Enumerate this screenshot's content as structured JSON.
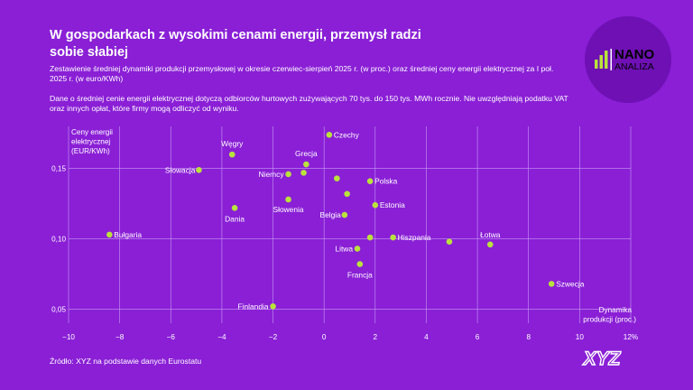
{
  "header": {
    "title": "W gospodarkach z wysokimi cenami energii, przemysł radzi sobie słabiej",
    "subtitle": "Zestawienie średniej dynamiki produkcji przemysłowej w okresie czerwiec-sierpień 2025 r. (w proc.) oraz średniej ceny energii elektrycznej za I poł. 2025 r. (w euro/KWh)",
    "note": "Dane o średniej cenie energii elektrycznej dotyczą odbiorców hurtowych zużywających 70 tys. do 150 tys. MWh rocznie. Nie uwzględniają podatku VAT oraz innych opłat, które firmy mogą odliczyć od wyniku."
  },
  "logo": {
    "line1": "NANO",
    "line2": "ANALIZA"
  },
  "footer": {
    "source": "Źródło: XYZ na podstawie danych Eurostatu",
    "brand": "XYZ"
  },
  "colors": {
    "background": "#8a1fd6",
    "point": "#b9e33c",
    "grid": "#c79cf2"
  },
  "chart_data": {
    "type": "scatter",
    "xlabel": "Dynamika produkcji (proc.)",
    "ylabel": "Ceny energii elektrycznej (EUR/KWh)",
    "xlim": [
      -10,
      12
    ],
    "ylim": [
      0.04,
      0.18
    ],
    "x_ticks": [
      -10,
      -8,
      -6,
      -4,
      -2,
      0,
      2,
      4,
      6,
      8,
      10,
      12
    ],
    "x_tick_labels": [
      "−10",
      "−8",
      "−6",
      "−4",
      "−2",
      "0",
      "2",
      "4",
      "6",
      "8",
      "10",
      "12%"
    ],
    "y_ticks": [
      0.05,
      0.1,
      0.15
    ],
    "y_tick_labels": [
      "0,05",
      "0,10",
      "0,15"
    ],
    "grid": true,
    "points": [
      {
        "label": "Czechy",
        "x": 0.2,
        "y": 0.174
      },
      {
        "label": "Węgry",
        "x": -3.6,
        "y": 0.16
      },
      {
        "label": "Grecja",
        "x": -0.7,
        "y": 0.153
      },
      {
        "label": "Słowacja",
        "x": -4.9,
        "y": 0.149
      },
      {
        "label": "Niemcy",
        "x": -1.4,
        "y": 0.146
      },
      {
        "label": "",
        "x": -0.8,
        "y": 0.147
      },
      {
        "label": "",
        "x": 0.5,
        "y": 0.143
      },
      {
        "label": "Polska",
        "x": 1.8,
        "y": 0.141
      },
      {
        "label": "",
        "x": 0.9,
        "y": 0.132
      },
      {
        "label": "Słowenia",
        "x": -1.4,
        "y": 0.128
      },
      {
        "label": "Estonia",
        "x": 2.0,
        "y": 0.124
      },
      {
        "label": "Dania",
        "x": -3.5,
        "y": 0.122
      },
      {
        "label": "Belgia",
        "x": 0.8,
        "y": 0.117
      },
      {
        "label": "Bułgaria",
        "x": -8.4,
        "y": 0.103
      },
      {
        "label": "",
        "x": 1.8,
        "y": 0.101
      },
      {
        "label": "Hiszpania",
        "x": 2.7,
        "y": 0.101
      },
      {
        "label": "",
        "x": 4.9,
        "y": 0.098
      },
      {
        "label": "Łotwa",
        "x": 6.5,
        "y": 0.096
      },
      {
        "label": "Litwa",
        "x": 1.3,
        "y": 0.093
      },
      {
        "label": "Francja",
        "x": 1.4,
        "y": 0.082
      },
      {
        "label": "Szwecja",
        "x": 8.9,
        "y": 0.068
      },
      {
        "label": "Finlandia",
        "x": -2.0,
        "y": 0.052
      }
    ]
  }
}
